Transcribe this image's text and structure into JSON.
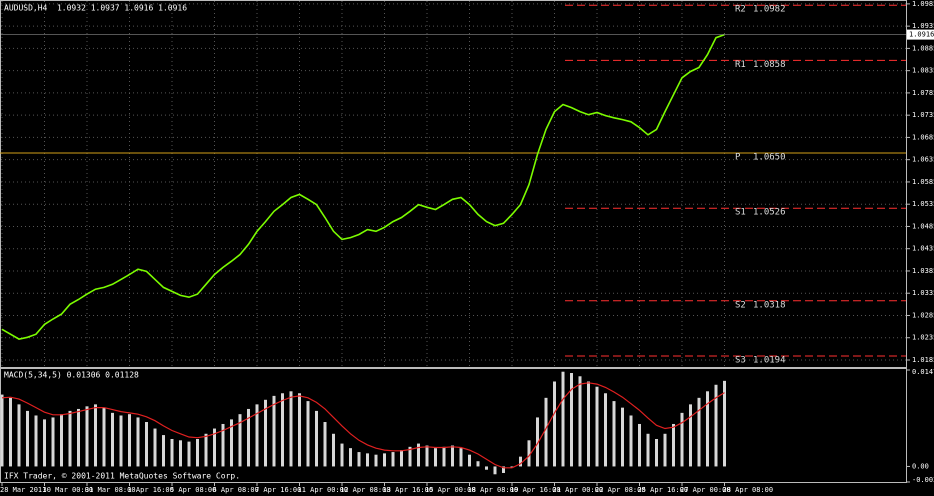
{
  "chart_data": [
    {
      "type": "line",
      "title": "AUDUSD,H4  1.0932 1.0937 1.0916 1.0916",
      "categories": [
        "28 Mar 2011",
        null,
        null,
        null,
        null,
        "30 Mar 00:00",
        null,
        null,
        null,
        null,
        "31 Mar 08:00",
        null,
        null,
        null,
        null,
        "1 Apr 16:00",
        null,
        null,
        null,
        null,
        "5 Apr 08:00",
        null,
        null,
        null,
        null,
        "6 Apr 08:00",
        null,
        null,
        null,
        null,
        "7 Apr 16:00",
        null,
        null,
        null,
        null,
        "11 Apr 00:00",
        null,
        null,
        null,
        null,
        "12 Apr 08:00",
        null,
        null,
        null,
        null,
        "13 Apr 16:00",
        null,
        null,
        null,
        null,
        "15 Apr 00:00",
        null,
        null,
        null,
        null,
        "18 Apr 08:00",
        null,
        null,
        null,
        null,
        "19 Apr 16:00",
        null,
        null,
        null,
        null,
        "21 Apr 00:00",
        null,
        null,
        null,
        null,
        "22 Apr 08:00",
        null,
        null,
        null,
        null,
        "25 Apr 16:00",
        null,
        null,
        null,
        null,
        "27 Apr 00:00",
        null,
        null,
        null,
        null,
        "28 Apr 08:00"
      ],
      "values": [
        1.0254,
        1.0243,
        1.0232,
        1.0236,
        1.0243,
        1.0265,
        1.0277,
        1.0288,
        1.031,
        1.0321,
        1.0333,
        1.0344,
        1.0348,
        1.0355,
        1.0366,
        1.0377,
        1.0389,
        1.0384,
        1.0366,
        1.0348,
        1.0339,
        1.033,
        1.0326,
        1.0333,
        1.0355,
        1.0377,
        1.0393,
        1.0407,
        1.0422,
        1.0445,
        1.0474,
        1.0496,
        1.0519,
        1.0534,
        1.055,
        1.0557,
        1.0546,
        1.0534,
        1.0505,
        1.0474,
        1.0456,
        1.046,
        1.0467,
        1.0478,
        1.0474,
        1.0483,
        1.0496,
        1.0505,
        1.0519,
        1.0534,
        1.0528,
        1.0523,
        1.0534,
        1.0546,
        1.055,
        1.0534,
        1.0512,
        1.0496,
        1.0487,
        1.0492,
        1.0512,
        1.0534,
        1.0579,
        1.0647,
        1.0703,
        1.0743,
        1.0759,
        1.0752,
        1.0743,
        1.0736,
        1.0741,
        1.0734,
        1.0729,
        1.0725,
        1.072,
        1.0707,
        1.0691,
        1.0703,
        1.0743,
        1.0781,
        1.0819,
        1.0833,
        1.0842,
        1.0871,
        1.0909,
        1.0916
      ],
      "color": "#7cfc00",
      "ylim": [
        1.0167,
        1.0987
      ],
      "yticks": [
        1.0185,
        1.0235,
        1.0285,
        1.0335,
        1.0385,
        1.0435,
        1.0485,
        1.0535,
        1.0585,
        1.0635,
        1.0685,
        1.0735,
        1.0785,
        1.0835,
        1.0885,
        1.0935,
        1.0985
      ],
      "last_price": 1.0916,
      "grid": true,
      "levels": [
        {
          "name": "R2",
          "value": 1.0982,
          "color": "#ff3030"
        },
        {
          "name": "R1",
          "value": 1.0858,
          "color": "#ff3030"
        },
        {
          "name": "P",
          "value": 1.065,
          "value_label": "1.0650",
          "color": "#d4a017"
        },
        {
          "name": "S1",
          "value": 1.0526,
          "color": "#ff3030"
        },
        {
          "name": "S2",
          "value": 1.0318,
          "color": "#ff3030"
        },
        {
          "name": "S3",
          "value": 1.0194,
          "color": "#ff3030"
        }
      ]
    },
    {
      "type": "bar",
      "title": "MACD(5,34,5) 0.01306 0.01128",
      "values": [
        0.011,
        0.0105,
        0.0095,
        0.0085,
        0.0078,
        0.0072,
        0.0075,
        0.008,
        0.0085,
        0.0088,
        0.0092,
        0.0095,
        0.009,
        0.0082,
        0.0078,
        0.008,
        0.0075,
        0.0068,
        0.0058,
        0.0048,
        0.0042,
        0.004,
        0.0038,
        0.0042,
        0.005,
        0.0058,
        0.0065,
        0.0072,
        0.008,
        0.0088,
        0.0095,
        0.0102,
        0.0108,
        0.0112,
        0.0115,
        0.0112,
        0.01,
        0.0085,
        0.0068,
        0.005,
        0.0035,
        0.0028,
        0.0022,
        0.002,
        0.0018,
        0.002,
        0.0022,
        0.0025,
        0.003,
        0.0035,
        0.0032,
        0.0028,
        0.003,
        0.0032,
        0.0028,
        0.0018,
        0.0008,
        -0.0005,
        -0.0012,
        -0.001,
        -0.0002,
        0.0015,
        0.004,
        0.0075,
        0.0105,
        0.013,
        0.0145,
        0.0143,
        0.0138,
        0.013,
        0.0122,
        0.0112,
        0.01,
        0.009,
        0.0078,
        0.0065,
        0.005,
        0.0042,
        0.005,
        0.0065,
        0.0082,
        0.0095,
        0.0105,
        0.0115,
        0.0125,
        0.0131
      ],
      "signal": [
        0.0105,
        0.0106,
        0.0103,
        0.0097,
        0.009,
        0.0083,
        0.0079,
        0.0079,
        0.0081,
        0.0084,
        0.0087,
        0.009,
        0.009,
        0.0087,
        0.0084,
        0.0082,
        0.008,
        0.0076,
        0.007,
        0.0062,
        0.0055,
        0.005,
        0.0045,
        0.0044,
        0.0046,
        0.005,
        0.0055,
        0.0061,
        0.0067,
        0.0074,
        0.0081,
        0.0088,
        0.0095,
        0.0101,
        0.0106,
        0.0108,
        0.0105,
        0.0098,
        0.0088,
        0.0075,
        0.0062,
        0.005,
        0.004,
        0.0033,
        0.0028,
        0.0025,
        0.0024,
        0.0024,
        0.0026,
        0.0029,
        0.003,
        0.0029,
        0.0029,
        0.003,
        0.0029,
        0.0025,
        0.0019,
        0.0011,
        0.0003,
        -0.0002,
        -0.0002,
        0.0004,
        0.0016,
        0.0035,
        0.0058,
        0.0082,
        0.0103,
        0.0118,
        0.0126,
        0.0128,
        0.0126,
        0.0121,
        0.0114,
        0.0106,
        0.0096,
        0.0086,
        0.0074,
        0.0063,
        0.0058,
        0.006,
        0.0067,
        0.0076,
        0.0086,
        0.0096,
        0.0105,
        0.0113
      ],
      "color": "#d8d8d8",
      "signal_color": "#e02020",
      "ylim": [
        -0.00238,
        0.01476
      ],
      "yticks": [
        -0.00238,
        {
          "value": 0,
          "label": "0.00"
        },
        0.01476
      ]
    }
  ],
  "footer": "IFX Trader, © 2001-2011 MetaQuotes Software Corp."
}
